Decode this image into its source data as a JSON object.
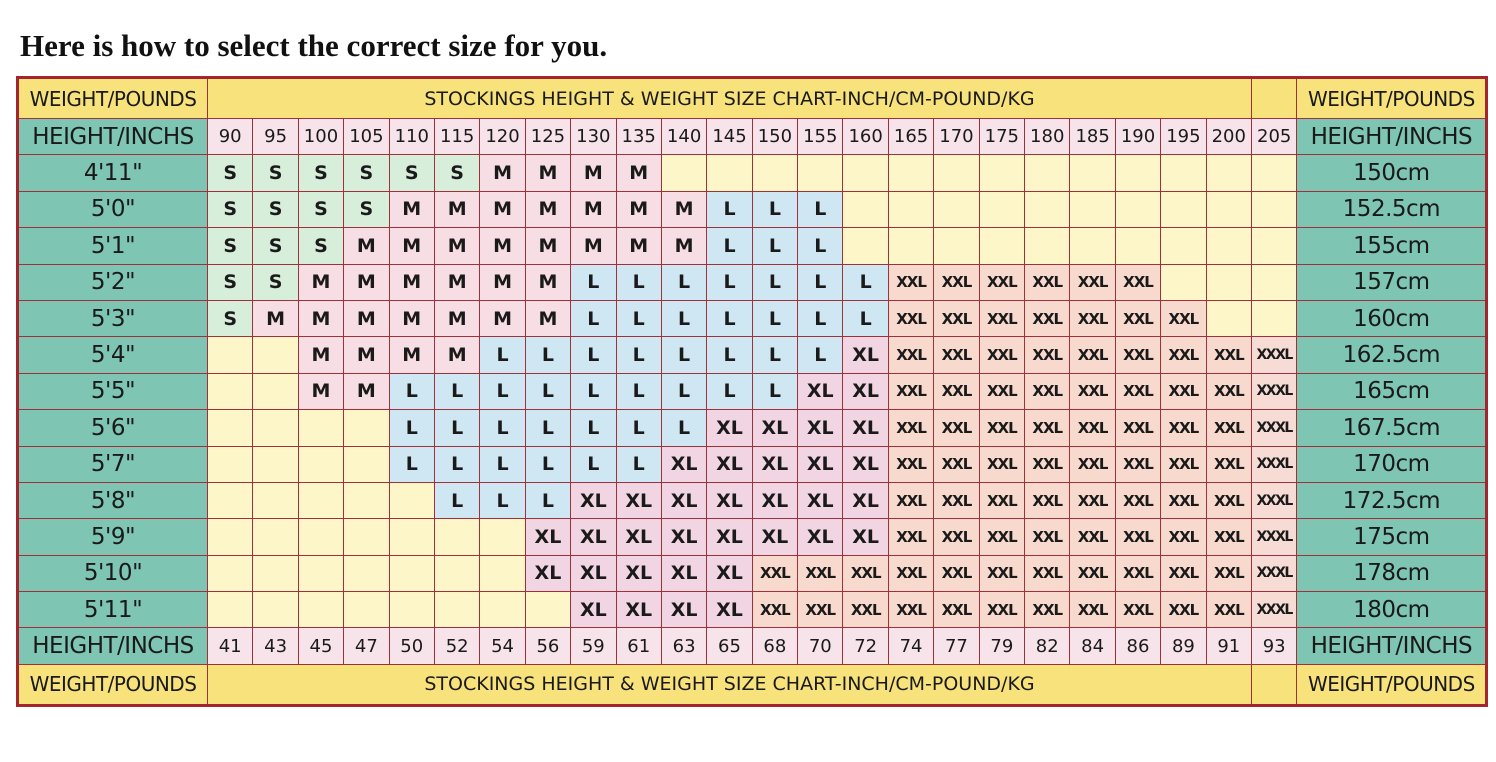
{
  "title": "Here is how to select the correct size for you.",
  "header": {
    "left": "WEIGHT/POUNDS",
    "banner": "STOCKINGS HEIGHT & WEIGHT SIZE CHART-INCH/CM-POUND/KG",
    "right": "WEIGHT/POUNDS"
  },
  "height_label": "HEIGHT/INCHS",
  "pounds": [
    "90",
    "95",
    "100",
    "105",
    "110",
    "115",
    "120",
    "125",
    "130",
    "135",
    "140",
    "145",
    "150",
    "155",
    "160",
    "165",
    "170",
    "175",
    "180",
    "185",
    "190",
    "195",
    "200",
    "205"
  ],
  "kilograms": [
    "41",
    "43",
    "45",
    "47",
    "50",
    "52",
    "54",
    "56",
    "59",
    "61",
    "63",
    "65",
    "68",
    "70",
    "72",
    "74",
    "77",
    "79",
    "82",
    "84",
    "86",
    "89",
    "91",
    "93"
  ],
  "rows": [
    {
      "height": "4'11\"",
      "cm": "150cm",
      "sizes": [
        "S",
        "S",
        "S",
        "S",
        "S",
        "S",
        "M",
        "M",
        "M",
        "M",
        "",
        "",
        "",
        "",
        "",
        "",
        "",
        "",
        "",
        "",
        "",
        "",
        "",
        ""
      ]
    },
    {
      "height": "5'0\"",
      "cm": "152.5cm",
      "sizes": [
        "S",
        "S",
        "S",
        "S",
        "M",
        "M",
        "M",
        "M",
        "M",
        "M",
        "M",
        "L",
        "L",
        "L",
        "",
        "",
        "",
        "",
        "",
        "",
        "",
        "",
        "",
        ""
      ]
    },
    {
      "height": "5'1\"",
      "cm": "155cm",
      "sizes": [
        "S",
        "S",
        "S",
        "M",
        "M",
        "M",
        "M",
        "M",
        "M",
        "M",
        "M",
        "L",
        "L",
        "L",
        "",
        "",
        "",
        "",
        "",
        "",
        "",
        "",
        "",
        ""
      ]
    },
    {
      "height": "5'2\"",
      "cm": "157cm",
      "sizes": [
        "S",
        "S",
        "M",
        "M",
        "M",
        "M",
        "M",
        "M",
        "L",
        "L",
        "L",
        "L",
        "L",
        "L",
        "L",
        "XXL",
        "XXL",
        "XXL",
        "XXL",
        "XXL",
        "XXL",
        "",
        "",
        ""
      ]
    },
    {
      "height": "5'3\"",
      "cm": "160cm",
      "sizes": [
        "S",
        "M",
        "M",
        "M",
        "M",
        "M",
        "M",
        "M",
        "L",
        "L",
        "L",
        "L",
        "L",
        "L",
        "L",
        "XXL",
        "XXL",
        "XXL",
        "XXL",
        "XXL",
        "XXL",
        "XXL",
        "",
        ""
      ]
    },
    {
      "height": "5'4\"",
      "cm": "162.5cm",
      "sizes": [
        "",
        "",
        "M",
        "M",
        "M",
        "M",
        "L",
        "L",
        "L",
        "L",
        "L",
        "L",
        "L",
        "L",
        "XL",
        "XXL",
        "XXL",
        "XXL",
        "XXL",
        "XXL",
        "XXL",
        "XXL",
        "XXL",
        "XXXL"
      ]
    },
    {
      "height": "5'5\"",
      "cm": "165cm",
      "sizes": [
        "",
        "",
        "M",
        "M",
        "L",
        "L",
        "L",
        "L",
        "L",
        "L",
        "L",
        "L",
        "L",
        "XL",
        "XL",
        "XXL",
        "XXL",
        "XXL",
        "XXL",
        "XXL",
        "XXL",
        "XXL",
        "XXL",
        "XXXL"
      ]
    },
    {
      "height": "5'6\"",
      "cm": "167.5cm",
      "sizes": [
        "",
        "",
        "",
        "",
        "L",
        "L",
        "L",
        "L",
        "L",
        "L",
        "L",
        "XL",
        "XL",
        "XL",
        "XL",
        "XXL",
        "XXL",
        "XXL",
        "XXL",
        "XXL",
        "XXL",
        "XXL",
        "XXL",
        "XXXL"
      ]
    },
    {
      "height": "5'7\"",
      "cm": "170cm",
      "sizes": [
        "",
        "",
        "",
        "",
        "L",
        "L",
        "L",
        "L",
        "L",
        "L",
        "XL",
        "XL",
        "XL",
        "XL",
        "XL",
        "XXL",
        "XXL",
        "XXL",
        "XXL",
        "XXL",
        "XXL",
        "XXL",
        "XXL",
        "XXXL"
      ]
    },
    {
      "height": "5'8\"",
      "cm": "172.5cm",
      "sizes": [
        "",
        "",
        "",
        "",
        "",
        "L",
        "L",
        "L",
        "XL",
        "XL",
        "XL",
        "XL",
        "XL",
        "XL",
        "XL",
        "XXL",
        "XXL",
        "XXL",
        "XXL",
        "XXL",
        "XXL",
        "XXL",
        "XXL",
        "XXXL"
      ]
    },
    {
      "height": "5'9\"",
      "cm": "175cm",
      "sizes": [
        "",
        "",
        "",
        "",
        "",
        "",
        "",
        "XL",
        "XL",
        "XL",
        "XL",
        "XL",
        "XL",
        "XL",
        "XL",
        "XXL",
        "XXL",
        "XXL",
        "XXL",
        "XXL",
        "XXL",
        "XXL",
        "XXL",
        "XXXL"
      ]
    },
    {
      "height": "5'10\"",
      "cm": "178cm",
      "sizes": [
        "",
        "",
        "",
        "",
        "",
        "",
        "",
        "XL",
        "XL",
        "XL",
        "XL",
        "XL",
        "XXL",
        "XXL",
        "XXL",
        "XXL",
        "XXL",
        "XXL",
        "XXL",
        "XXL",
        "XXL",
        "XXL",
        "XXL",
        "XXXL"
      ]
    },
    {
      "height": "5'11\"",
      "cm": "180cm",
      "sizes": [
        "",
        "",
        "",
        "",
        "",
        "",
        "",
        "",
        "XL",
        "XL",
        "XL",
        "XL",
        "XXL",
        "XXL",
        "XXL",
        "XXL",
        "XXL",
        "XXL",
        "XXL",
        "XXL",
        "XXL",
        "XXL",
        "XXL",
        "XXXL"
      ]
    }
  ],
  "footer": {
    "left": "WEIGHT/POUNDS",
    "banner": "STOCKINGS HEIGHT & WEIGHT SIZE CHART-INCH/CM-POUND/KG",
    "right": "WEIGHT/POUNDS"
  },
  "colors": {
    "border": "#a3262e",
    "teal": "#7ec5b3",
    "yellow": "#f8e27b",
    "S": "#d7eedb",
    "M": "#f7dde4",
    "L": "#cfe6f3",
    "XL": "#f2d5e3",
    "XXL": "#f8d9cd",
    "empty": "#fdf6c9"
  }
}
